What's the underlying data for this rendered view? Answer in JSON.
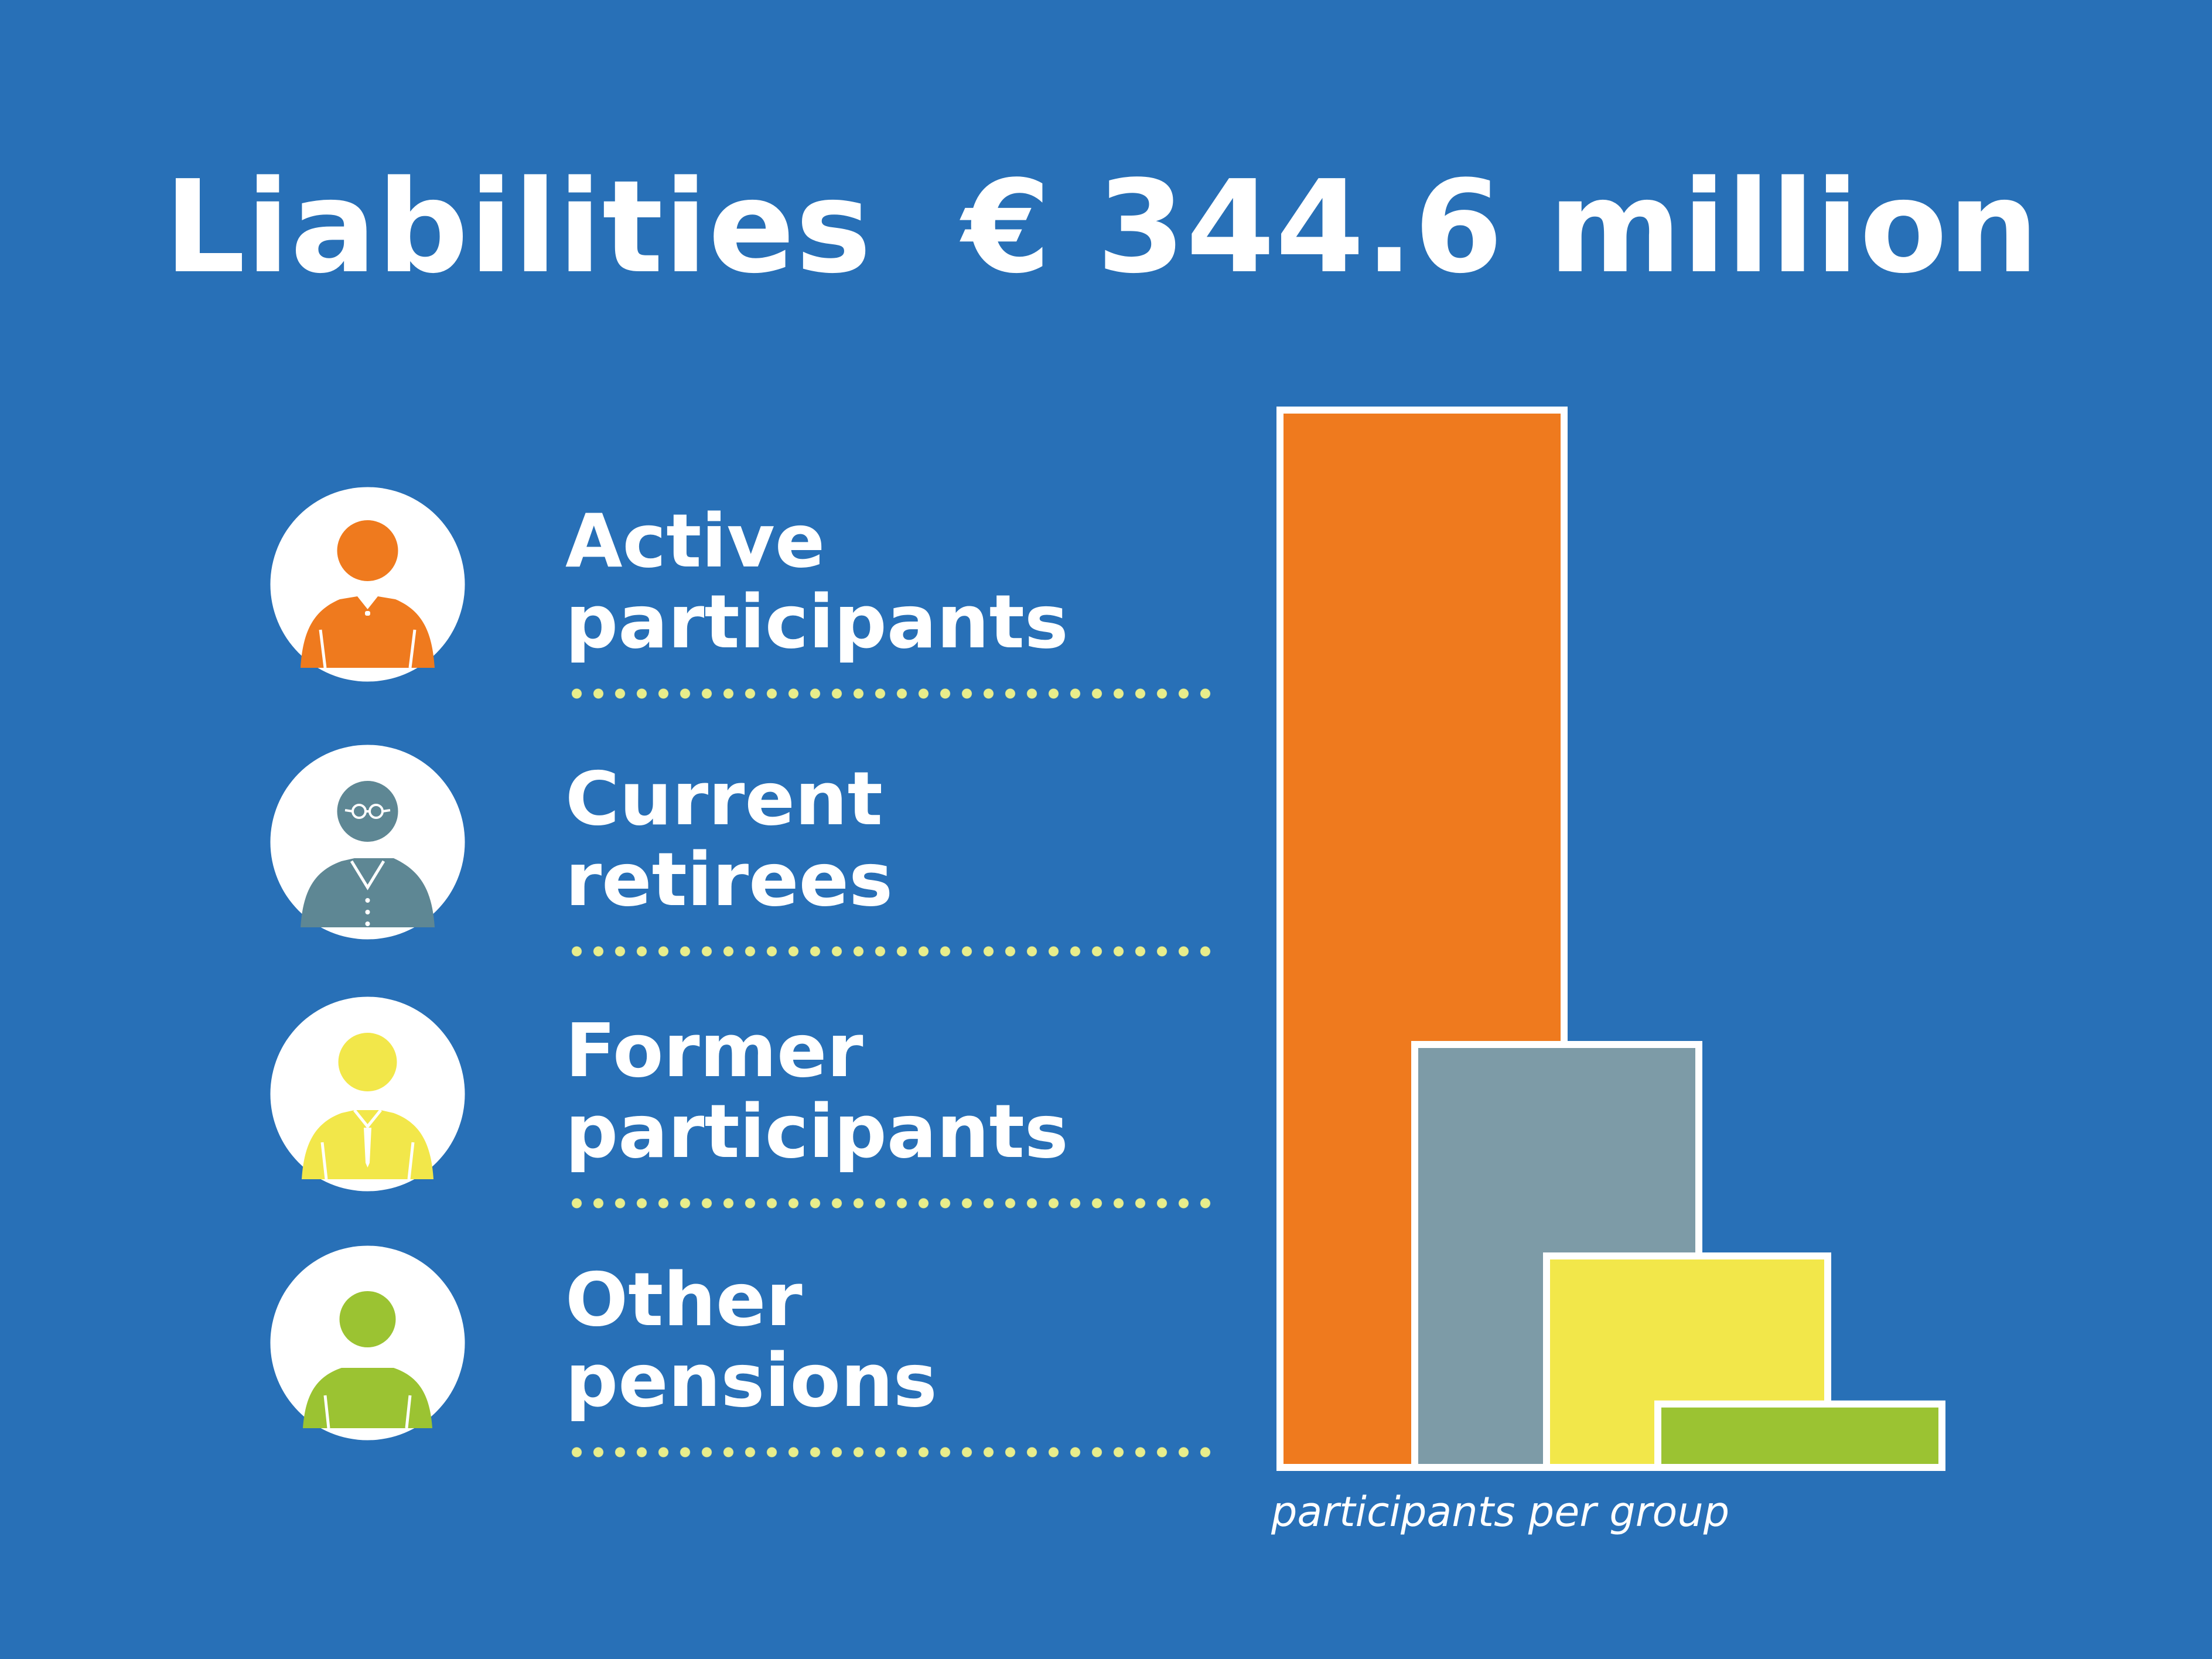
{
  "title": "Liabilities  € 344.6 million",
  "groups": [
    {
      "line1": "Active",
      "line2": "participants",
      "icon": "active-participant-icon",
      "color": "#ef7a1e"
    },
    {
      "line1": "Current",
      "line2": "retirees",
      "icon": "retiree-icon",
      "color": "#5e8794"
    },
    {
      "line1": "Former",
      "line2": "participants",
      "icon": "former-participant-icon",
      "color": "#f2e74a"
    },
    {
      "line1": "Other",
      "line2": "pensions",
      "icon": "other-pension-icon",
      "color": "#9bc332"
    }
  ],
  "chart_data": {
    "type": "bar",
    "categories": [
      "Active participants",
      "Current retirees",
      "Former participants",
      "Other pensions"
    ],
    "values": [
      100,
      40,
      20,
      6
    ],
    "value_scale": "relative (no numeric labels shown)",
    "colors": [
      "#ef7a1e",
      "#7d9ba7",
      "#f2e74a",
      "#9bc332"
    ],
    "xlabel": "participants per group",
    "ylabel": "",
    "ylim": [
      0,
      100
    ],
    "grid": false,
    "legend": "left (icon list)",
    "overlapping_bars": true
  }
}
